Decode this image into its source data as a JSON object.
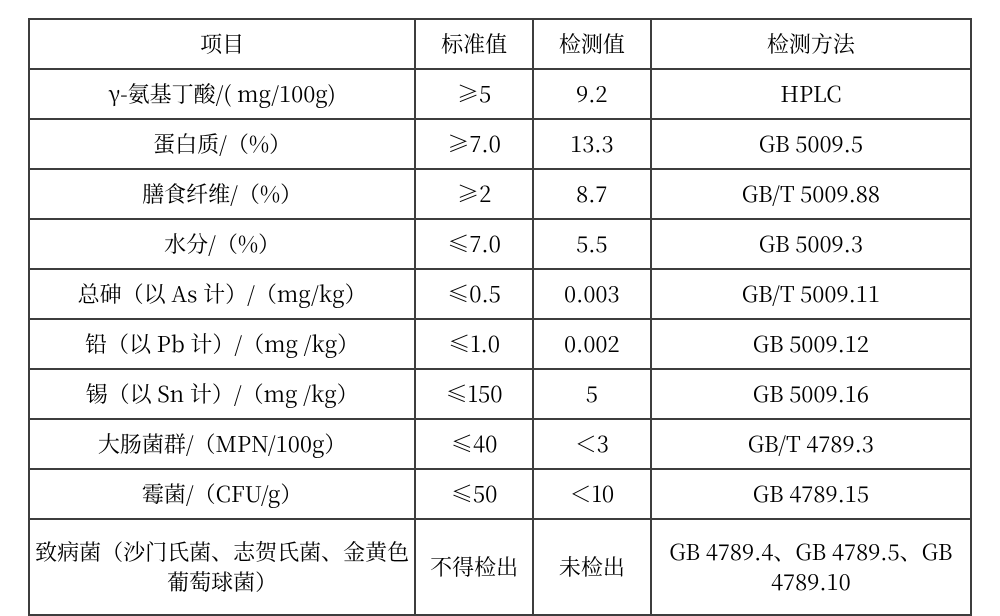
{
  "table": {
    "columns": [
      "项目",
      "标准值",
      "检测值",
      "检测方法"
    ],
    "col_widths_pct": [
      41,
      12.5,
      12.5,
      34
    ],
    "border_color": "#3d3d3d",
    "background_color": "#ffffff",
    "text_color": "#000000",
    "font_size_pt": 16,
    "font_family": "SimSun / Songti",
    "rows": [
      {
        "item": "γ-氨基丁酸/( mg/100g)",
        "std": "≥5",
        "val": "9.2",
        "method": "HPLC"
      },
      {
        "item": "蛋白质/（%）",
        "std": "≥7.0",
        "val": "13.3",
        "method": "GB 5009.5"
      },
      {
        "item": "膳食纤维/（%）",
        "std": "≥2",
        "val": "8.7",
        "method": "GB/T 5009.88"
      },
      {
        "item": "水分/（%）",
        "std": "≤7.0",
        "val": "5.5",
        "method": "GB 5009.3"
      },
      {
        "item": "总砷（以 As 计）/（mg/kg）",
        "std": "≤0.5",
        "val": "0.003",
        "method": "GB/T 5009.11"
      },
      {
        "item": "铅（以 Pb 计）/（mg /kg）",
        "std": "≤1.0",
        "val": "0.002",
        "method": "GB 5009.12"
      },
      {
        "item": "锡（以 Sn 计）/（mg /kg）",
        "std": "≤150",
        "val": "5",
        "method": "GB 5009.16"
      },
      {
        "item": "大肠菌群/（MPN/100g）",
        "std": "≤40",
        "val": "＜3",
        "method": "GB/T 4789.3"
      },
      {
        "item": "霉菌/（CFU/g）",
        "std": "≤50",
        "val": "＜10",
        "method": "GB 4789.15"
      },
      {
        "item": "致病菌（沙门氏菌、志贺氏菌、金黄色葡萄球菌）",
        "std": "不得检出",
        "val": "未检出",
        "method": "GB 4789.4、GB 4789.5、GB 4789.10"
      }
    ]
  }
}
